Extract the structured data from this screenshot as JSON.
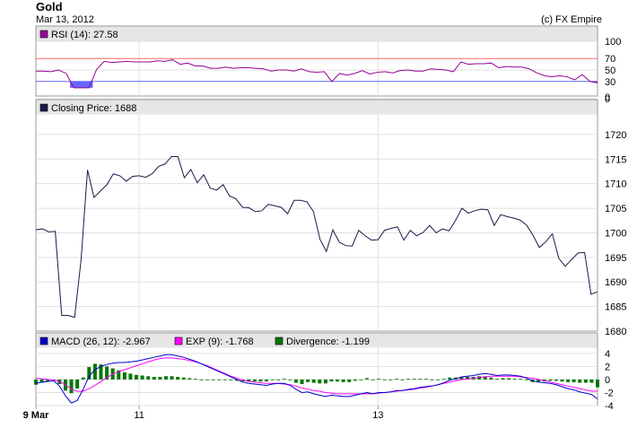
{
  "header": {
    "title": "Gold",
    "date": "Mar 13, 2012",
    "credit": "(c) FX Empire"
  },
  "colors": {
    "rsi_line": "#990099",
    "rsi_fill": "#6666ff",
    "rsi_upper": "#ff6666",
    "rsi_lower": "#6666ff",
    "price_line": "#1a1a4a",
    "macd_line": "#0000cc",
    "exp_line": "#ff00ff",
    "divergence": "#007700",
    "panel_header": "#e6e6e6",
    "grid": "#e0e0e0"
  },
  "x_axis": {
    "labels": [
      "9 Mar",
      "11",
      "13"
    ],
    "label_index": [
      0,
      16,
      53
    ]
  },
  "chart_data": [
    {
      "type": "line",
      "name": "RSI panel",
      "legend": "RSI (14): 27.58",
      "legend_color": "#990099",
      "ylim": [
        0,
        110
      ],
      "yticks": [
        0,
        50,
        100
      ],
      "overbought": 70,
      "oversold": 30,
      "levels_label": [
        "70",
        "30"
      ],
      "values": [
        48,
        48,
        47,
        50,
        44,
        19,
        19,
        19,
        51,
        65,
        63,
        64,
        65,
        64,
        64,
        64,
        66,
        65,
        68,
        60,
        62,
        57,
        57,
        53,
        53,
        55,
        53,
        54,
        54,
        53,
        52,
        48,
        50,
        50,
        48,
        52,
        47,
        46,
        47,
        30,
        44,
        41,
        44,
        49,
        43,
        46,
        47,
        45,
        49,
        50,
        48,
        48,
        52,
        51,
        50,
        47,
        64,
        60,
        61,
        61,
        62,
        54,
        56,
        55,
        55,
        52,
        45,
        40,
        38,
        40,
        38,
        33,
        42,
        30,
        27.58
      ]
    },
    {
      "type": "line",
      "name": "Price panel",
      "legend": "Closing Price: 1688",
      "legend_color": "#1a1a4a",
      "ylim": [
        1680,
        1724
      ],
      "yticks": [
        1680,
        1685,
        1690,
        1695,
        1700,
        1705,
        1710,
        1715,
        1720
      ],
      "values": [
        1700.6,
        1700.8,
        1700.2,
        1700.3,
        1683.2,
        1683.2,
        1682.8,
        1694.5,
        1712.8,
        1707.2,
        1708.5,
        1709.8,
        1712.0,
        1711.6,
        1710.5,
        1711.5,
        1711.6,
        1711.3,
        1712.0,
        1713.5,
        1714.0,
        1715.5,
        1715.5,
        1711.2,
        1712.9,
        1710.2,
        1711.8,
        1709.1,
        1708.7,
        1709.8,
        1707.5,
        1706.9,
        1705.2,
        1705.1,
        1704.3,
        1704.5,
        1705.8,
        1705.5,
        1705.2,
        1703.9,
        1706.6,
        1706.6,
        1706.3,
        1704.3,
        1698.7,
        1696.2,
        1700.6,
        1698.1,
        1697.4,
        1697.3,
        1700.5,
        1699.4,
        1698.5,
        1698.6,
        1700.5,
        1700.9,
        1701.2,
        1698.5,
        1700.5,
        1699.4,
        1700.1,
        1701.5,
        1700.0,
        1700.8,
        1700.4,
        1702.5,
        1705.0,
        1704.0,
        1704.5,
        1704.8,
        1704.7,
        1701.5,
        1703.7,
        1703.3,
        1703.0,
        1702.6,
        1701.6,
        1699.5,
        1697.0,
        1698.2,
        1699.8,
        1694.8,
        1693.2,
        1694.6,
        1695.9,
        1696.0,
        1687.5,
        1688.0
      ]
    },
    {
      "type": "line",
      "name": "MACD panel",
      "legend": [
        "MACD (26, 12): -2.967",
        "EXP (9): -1.768",
        "Divergence: -1.199"
      ],
      "ylim": [
        -4,
        4.8
      ],
      "yticks": [
        -4,
        -2,
        0,
        2,
        4
      ],
      "macd": [
        -0.6,
        -0.4,
        -0.3,
        -0.2,
        -1.0,
        -2.5,
        -3.6,
        -3.2,
        -1.5,
        0.5,
        1.5,
        2.0,
        2.3,
        2.5,
        2.6,
        2.6,
        2.7,
        2.8,
        3.0,
        3.2,
        3.4,
        3.6,
        3.8,
        3.8,
        3.6,
        3.4,
        3.1,
        2.8,
        2.4,
        2.0,
        1.6,
        1.2,
        0.8,
        0.4,
        0.0,
        -0.4,
        -0.6,
        -0.7,
        -0.8,
        -0.9,
        -0.7,
        -0.6,
        -0.6,
        -0.9,
        -1.5,
        -2.0,
        -1.9,
        -2.2,
        -2.4,
        -2.6,
        -2.4,
        -2.5,
        -2.6,
        -2.6,
        -2.4,
        -2.2,
        -2.0,
        -2.2,
        -2.0,
        -2.0,
        -1.9,
        -1.7,
        -1.7,
        -1.5,
        -1.4,
        -1.2,
        -1.1,
        -1.0,
        -0.8,
        -0.5,
        -0.1,
        0.1,
        0.4,
        0.5,
        0.6,
        0.8,
        0.9,
        0.8,
        0.6,
        0.7,
        0.7,
        0.6,
        0.5,
        0.2,
        -0.2,
        -0.4,
        -0.5,
        -0.6,
        -0.8,
        -1.1,
        -1.4,
        -1.6,
        -1.9,
        -2.1,
        -2.3,
        -2.967
      ],
      "exp": [
        0.2,
        0.1,
        0.0,
        -0.1,
        -0.3,
        -0.8,
        -1.5,
        -1.8,
        -1.8,
        -1.4,
        -0.9,
        -0.3,
        0.3,
        0.8,
        1.2,
        1.5,
        1.8,
        2.1,
        2.4,
        2.7,
        3.0,
        3.2,
        3.3,
        3.3,
        3.2,
        3.1,
        2.9,
        2.7,
        2.4,
        2.1,
        1.7,
        1.3,
        0.9,
        0.5,
        0.2,
        -0.1,
        -0.3,
        -0.4,
        -0.5,
        -0.6,
        -0.6,
        -0.6,
        -0.7,
        -0.8,
        -1.0,
        -1.3,
        -1.5,
        -1.7,
        -1.8,
        -2.0,
        -2.1,
        -2.2,
        -2.2,
        -2.2,
        -2.2,
        -2.2,
        -2.2,
        -2.2,
        -2.1,
        -2.0,
        -1.9,
        -1.8,
        -1.7,
        -1.6,
        -1.5,
        -1.3,
        -1.2,
        -1.0,
        -0.8,
        -0.6,
        -0.4,
        -0.2,
        0.0,
        0.1,
        0.2,
        0.3,
        0.4,
        0.5,
        0.5,
        0.5,
        0.5,
        0.5,
        0.4,
        0.3,
        0.2,
        0.0,
        -0.2,
        -0.4,
        -0.6,
        -0.8,
        -1.0,
        -1.2,
        -1.4,
        -1.6,
        -1.8,
        -1.768
      ],
      "divergence": [
        -0.8,
        -0.5,
        -0.3,
        -0.1,
        -0.7,
        -1.7,
        -2.1,
        -1.4,
        0.3,
        1.9,
        2.4,
        2.3,
        2.0,
        1.7,
        1.4,
        1.1,
        0.9,
        0.7,
        0.6,
        0.5,
        0.4,
        0.4,
        0.5,
        0.5,
        0.4,
        0.3,
        0.2,
        0.1,
        0.0,
        -0.1,
        -0.1,
        -0.1,
        -0.1,
        -0.1,
        -0.2,
        -0.3,
        -0.3,
        -0.3,
        -0.3,
        -0.3,
        -0.1,
        0.0,
        0.1,
        -0.1,
        -0.5,
        -0.7,
        -0.4,
        -0.5,
        -0.6,
        -0.6,
        -0.3,
        -0.3,
        -0.4,
        -0.4,
        -0.2,
        0.0,
        0.2,
        0.0,
        0.1,
        0.0,
        0.0,
        0.1,
        0.0,
        0.1,
        0.1,
        0.1,
        0.1,
        0.0,
        0.0,
        0.1,
        0.3,
        0.3,
        0.4,
        0.4,
        0.4,
        0.5,
        0.5,
        0.3,
        0.1,
        0.2,
        0.2,
        0.1,
        0.1,
        -0.1,
        -0.4,
        -0.4,
        -0.3,
        -0.2,
        -0.2,
        -0.3,
        -0.4,
        -0.4,
        -0.5,
        -0.5,
        -0.5,
        -1.199
      ]
    }
  ]
}
